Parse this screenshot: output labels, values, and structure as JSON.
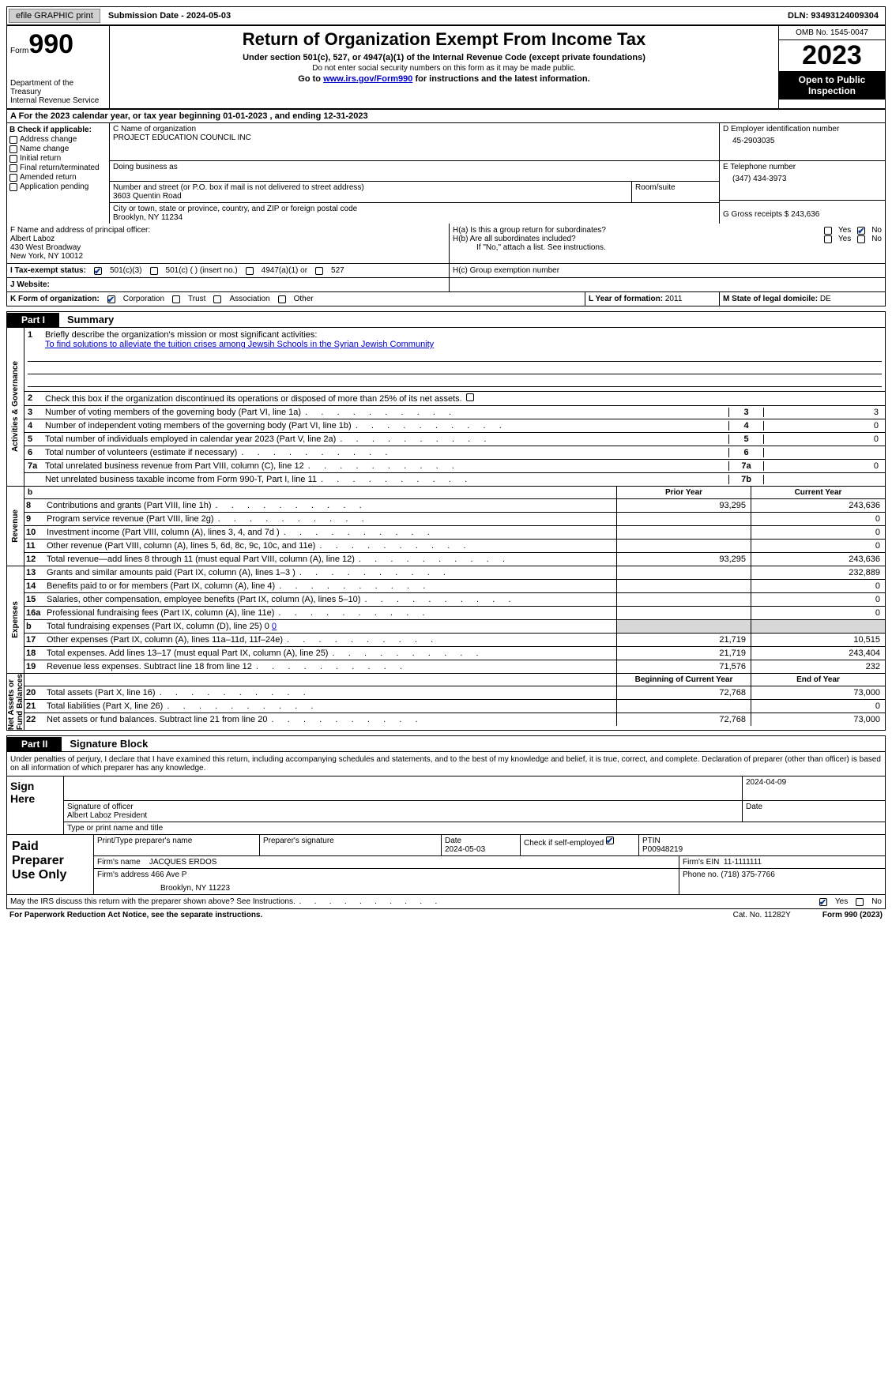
{
  "topbar": {
    "efile_btn": "efile GRAPHIC print",
    "submission": "Submission Date - 2024-05-03",
    "dln": "DLN: 93493124009304"
  },
  "header": {
    "form_word": "Form",
    "form_num": "990",
    "title": "Return of Organization Exempt From Income Tax",
    "subtitle": "Under section 501(c), 527, or 4947(a)(1) of the Internal Revenue Code (except private foundations)",
    "note1": "Do not enter social security numbers on this form as it may be made public.",
    "goto_prefix": "Go to ",
    "goto_link": "www.irs.gov/Form990",
    "goto_suffix": " for instructions and the latest information.",
    "dept": "Department of the Treasury\nInternal Revenue Service",
    "omb": "OMB No. 1545-0047",
    "year": "2023",
    "open": "Open to Public Inspection"
  },
  "taxyear": "A For the 2023 calendar year, or tax year beginning 01-01-2023   , and ending 12-31-2023",
  "boxB": {
    "label": "B Check if applicable:",
    "items": [
      "Address change",
      "Name change",
      "Initial return",
      "Final return/terminated",
      "Amended return",
      "Application pending"
    ]
  },
  "boxC": {
    "name_label": "C Name of organization",
    "name": "PROJECT EDUCATION COUNCIL INC",
    "dba_label": "Doing business as",
    "addr_label": "Number and street (or P.O. box if mail is not delivered to street address)",
    "addr": "3603 Quentin Road",
    "room_label": "Room/suite",
    "city_label": "City or town, state or province, country, and ZIP or foreign postal code",
    "city": "Brooklyn, NY  11234"
  },
  "boxD": {
    "label": "D Employer identification number",
    "ein": "45-2903035",
    "tel_label": "E Telephone number",
    "tel": "(347) 434-3973",
    "gross_label": "G Gross receipts $",
    "gross": "243,636"
  },
  "boxF": {
    "label": "F  Name and address of principal officer:",
    "name": "Albert Laboz",
    "addr1": "430 West Broadway",
    "addr2": "New York, NY  10012"
  },
  "boxH": {
    "a_label": "H(a)  Is this a group return for subordinates?",
    "b_label": "H(b)  Are all subordinates included?",
    "note": "If \"No,\" attach a list. See instructions.",
    "c_label": "H(c)  Group exemption number",
    "yes": "Yes",
    "no": "No"
  },
  "boxI": {
    "label": "I   Tax-exempt status:",
    "o1": "501(c)(3)",
    "o2": "501(c) (  ) (insert no.)",
    "o3": "4947(a)(1) or",
    "o4": "527"
  },
  "boxJ": {
    "label": "J   Website:"
  },
  "boxK": {
    "label": "K Form of organization:",
    "o1": "Corporation",
    "o2": "Trust",
    "o3": "Association",
    "o4": "Other"
  },
  "boxL": {
    "label": "L Year of formation:",
    "val": "2011"
  },
  "boxM": {
    "label": "M State of legal domicile:",
    "val": "DE"
  },
  "part1": {
    "tag": "Part I",
    "title": "Summary",
    "vlabels": {
      "gov": "Activities & Governance",
      "rev": "Revenue",
      "exp": "Expenses",
      "net": "Net Assets or\nFund Balances"
    },
    "line1": {
      "n": "1",
      "d": "Briefly describe the organization's mission or most significant activities:",
      "mission": "To find solutions to alleviate the tuition crises among Jewsih Schools in the Syrian Jewish Community"
    },
    "line2": {
      "n": "2",
      "d": "Check this box         if the organization discontinued its operations or disposed of more than 25% of its net assets."
    },
    "gov_rows": [
      {
        "n": "3",
        "d": "Number of voting members of the governing body (Part VI, line 1a)",
        "box": "3",
        "val": "3"
      },
      {
        "n": "4",
        "d": "Number of independent voting members of the governing body (Part VI, line 1b)",
        "box": "4",
        "val": "0"
      },
      {
        "n": "5",
        "d": "Total number of individuals employed in calendar year 2023 (Part V, line 2a)",
        "box": "5",
        "val": "0"
      },
      {
        "n": "6",
        "d": "Total number of volunteers (estimate if necessary)",
        "box": "6",
        "val": ""
      },
      {
        "n": "7a",
        "d": "Total unrelated business revenue from Part VIII, column (C), line 12",
        "box": "7a",
        "val": "0"
      },
      {
        "n": "",
        "d": "Net unrelated business taxable income from Form 990-T, Part I, line 11",
        "box": "7b",
        "val": ""
      }
    ],
    "col_headers": {
      "b": "b",
      "prior": "Prior Year",
      "current": "Current Year"
    },
    "rev_rows": [
      {
        "n": "8",
        "d": "Contributions and grants (Part VIII, line 1h)",
        "pv": "93,295",
        "cv": "243,636"
      },
      {
        "n": "9",
        "d": "Program service revenue (Part VIII, line 2g)",
        "pv": "",
        "cv": "0"
      },
      {
        "n": "10",
        "d": "Investment income (Part VIII, column (A), lines 3, 4, and 7d )",
        "pv": "",
        "cv": "0"
      },
      {
        "n": "11",
        "d": "Other revenue (Part VIII, column (A), lines 5, 6d, 8c, 9c, 10c, and 11e)",
        "pv": "",
        "cv": "0"
      },
      {
        "n": "12",
        "d": "Total revenue—add lines 8 through 11 (must equal Part VIII, column (A), line 12)",
        "pv": "93,295",
        "cv": "243,636"
      }
    ],
    "exp_rows": [
      {
        "n": "13",
        "d": "Grants and similar amounts paid (Part IX, column (A), lines 1–3 )",
        "pv": "",
        "cv": "232,889"
      },
      {
        "n": "14",
        "d": "Benefits paid to or for members (Part IX, column (A), line 4)",
        "pv": "",
        "cv": "0"
      },
      {
        "n": "15",
        "d": "Salaries, other compensation, employee benefits (Part IX, column (A), lines 5–10)",
        "pv": "",
        "cv": "0"
      },
      {
        "n": "16a",
        "d": "Professional fundraising fees (Part IX, column (A), line 11e)",
        "pv": "",
        "cv": "0"
      },
      {
        "n": "b",
        "d": "Total fundraising expenses (Part IX, column (D), line 25) 0",
        "pv": "SHADE",
        "cv": "SHADE"
      },
      {
        "n": "17",
        "d": "Other expenses (Part IX, column (A), lines 11a–11d, 11f–24e)",
        "pv": "21,719",
        "cv": "10,515"
      },
      {
        "n": "18",
        "d": "Total expenses. Add lines 13–17 (must equal Part IX, column (A), line 25)",
        "pv": "21,719",
        "cv": "243,404"
      },
      {
        "n": "19",
        "d": "Revenue less expenses. Subtract line 18 from line 12",
        "pv": "71,576",
        "cv": "232"
      }
    ],
    "net_head": {
      "prior": "Beginning of Current Year",
      "current": "End of Year"
    },
    "net_rows": [
      {
        "n": "20",
        "d": "Total assets (Part X, line 16)",
        "pv": "72,768",
        "cv": "73,000"
      },
      {
        "n": "21",
        "d": "Total liabilities (Part X, line 26)",
        "pv": "",
        "cv": "0"
      },
      {
        "n": "22",
        "d": "Net assets or fund balances. Subtract line 21 from line 20",
        "pv": "72,768",
        "cv": "73,000"
      }
    ]
  },
  "part2": {
    "tag": "Part II",
    "title": "Signature Block",
    "decl": "Under penalties of perjury, I declare that I have examined this return, including accompanying schedules and statements, and to the best of my knowledge and belief, it is true, correct, and complete. Declaration of preparer (other than officer) is based on all information of which preparer has any knowledge.",
    "sign_here": "Sign Here",
    "sig_label": "Signature of officer",
    "officer": "Albert Laboz President",
    "type_label": "Type or print name and title",
    "date_label": "Date",
    "date_val": "2024-04-09",
    "paid": "Paid Preparer Use Only",
    "prep_name_label": "Print/Type preparer's name",
    "prep_sig_label": "Preparer's signature",
    "prep_date": "2024-05-03",
    "selfemp": "Check          if self-employed",
    "ptin_label": "PTIN",
    "ptin": "P00948219",
    "firm_name_label": "Firm's name",
    "firm_name": "JACQUES ERDOS",
    "firm_ein_label": "Firm's EIN",
    "firm_ein": "11-1111111",
    "firm_addr_label": "Firm's address",
    "firm_addr1": "466 Ave P",
    "firm_addr2": "Brooklyn, NY  11223",
    "phone_label": "Phone no.",
    "phone": "(718) 375-7766",
    "discuss": "May the IRS discuss this return with the preparer shown above? See Instructions.",
    "yes": "Yes",
    "no": "No"
  },
  "footer": {
    "paperwork": "For Paperwork Reduction Act Notice, see the separate instructions.",
    "cat": "Cat. No. 11282Y",
    "form": "Form 990 (2023)"
  },
  "colors": {
    "link": "#0000cc",
    "check": "#0a3d8f",
    "shade": "#d8d8d8"
  }
}
